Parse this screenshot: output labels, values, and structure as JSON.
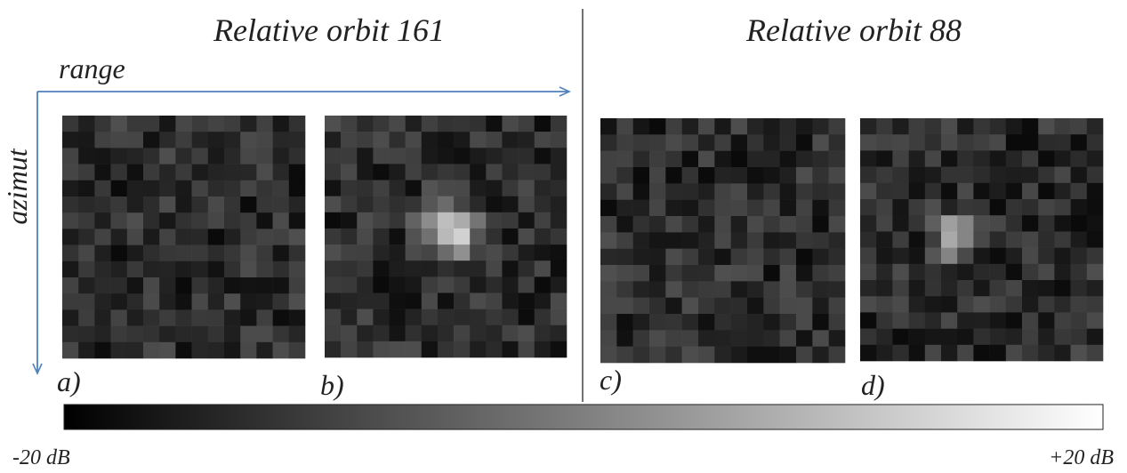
{
  "header": {
    "left_title": "Relative orbit 161",
    "right_title": "Relative orbit 88"
  },
  "axes": {
    "range": "range",
    "azimut": "azimut"
  },
  "panels": [
    {
      "label": "a)"
    },
    {
      "label": "b)"
    },
    {
      "label": "c)"
    },
    {
      "label": "d)"
    }
  ],
  "colorbar": {
    "min_label": "-20 dB",
    "max_label": "+20 dB"
  }
}
